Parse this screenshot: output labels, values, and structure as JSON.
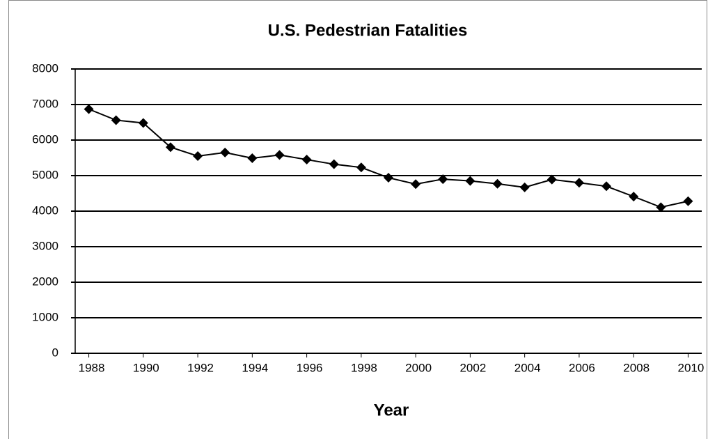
{
  "chart_data": {
    "type": "line",
    "title": "U.S. Pedestrian Fatalities",
    "x_label": "Year",
    "x": [
      1988,
      1989,
      1990,
      1991,
      1992,
      1993,
      1994,
      1995,
      1996,
      1997,
      1998,
      1999,
      2000,
      2001,
      2002,
      2003,
      2004,
      2005,
      2006,
      2007,
      2008,
      2009,
      2010
    ],
    "series": [
      {
        "name": "Pedestrian Fatalities",
        "color": "#000000",
        "values": [
          6870,
          6560,
          6480,
          5800,
          5550,
          5650,
          5490,
          5580,
          5450,
          5320,
          5230,
          4940,
          4760,
          4900,
          4850,
          4770,
          4670,
          4890,
          4800,
          4700,
          4410,
          4110,
          4280
        ]
      }
    ],
    "xlim": [
      1987.5,
      2010.5
    ],
    "xticks": [
      1988,
      1990,
      1992,
      1994,
      1996,
      1998,
      2000,
      2002,
      2004,
      2006,
      2008,
      2010
    ],
    "ylim": [
      0,
      8000
    ],
    "yticks": [
      0,
      1000,
      2000,
      3000,
      4000,
      5000,
      6000,
      7000,
      8000
    ],
    "grid": true
  }
}
